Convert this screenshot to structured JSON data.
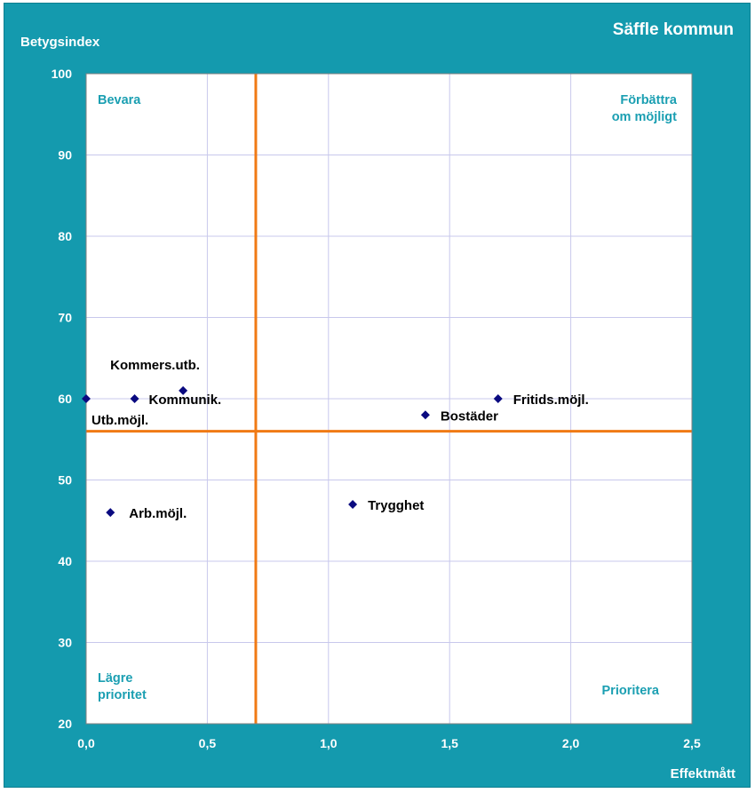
{
  "chart_data": {
    "type": "scatter",
    "title": "Säffle kommun",
    "xlabel": "Effektmått",
    "ylabel": "Betygsindex",
    "xlim": [
      0,
      2.5
    ],
    "ylim": [
      20,
      100
    ],
    "x_ticks": [
      "0,0",
      "0,5",
      "1,0",
      "1,5",
      "2,0",
      "2,5"
    ],
    "y_ticks": [
      "20",
      "30",
      "40",
      "50",
      "60",
      "70",
      "80",
      "90",
      "100"
    ],
    "grid": true,
    "reference_lines": {
      "x": 0.7,
      "y": 56
    },
    "quadrant_labels": {
      "top_left": [
        "Bevara"
      ],
      "top_right": [
        "Förbättra",
        "om möjligt"
      ],
      "bottom_left": [
        "Lägre",
        "prioritet"
      ],
      "bottom_right": [
        "Prioritera"
      ]
    },
    "points": [
      {
        "label": "Utb.möjl.",
        "x": 0.0,
        "y": 60
      },
      {
        "label": "Kommunik.",
        "x": 0.2,
        "y": 60
      },
      {
        "label": "Kommers.utb.",
        "x": 0.4,
        "y": 61
      },
      {
        "label": "Arb.möjl.",
        "x": 0.1,
        "y": 46
      },
      {
        "label": "Trygghet",
        "x": 1.1,
        "y": 47
      },
      {
        "label": "Bostäder",
        "x": 1.4,
        "y": 58
      },
      {
        "label": "Fritids.möjl.",
        "x": 1.7,
        "y": 60
      }
    ],
    "colors": {
      "background": "#149aae",
      "plot": "#ffffff",
      "grid": "#c8c8ec",
      "reference": "#f07a14",
      "marker": "#0a0a80",
      "quadrant_text": "#1b9fb2"
    }
  }
}
